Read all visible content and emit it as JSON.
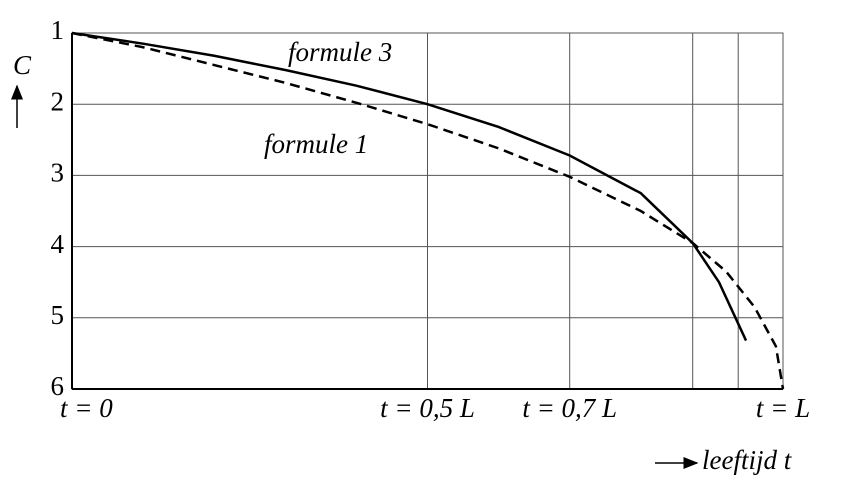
{
  "chart_data": {
    "type": "line",
    "x": [
      0,
      0.1,
      0.2,
      0.3,
      0.4,
      0.5,
      0.6,
      0.7,
      0.8,
      0.873,
      0.92,
      0.96,
      0.99,
      1.0
    ],
    "series": [
      {
        "name": "formule 3",
        "color": "#000000",
        "dash": false,
        "x": [
          0,
          0.1,
          0.2,
          0.3,
          0.4,
          0.5,
          0.6,
          0.7,
          0.8,
          0.873,
          0.91,
          0.948
        ],
        "values": [
          1,
          1.15,
          1.32,
          1.52,
          1.74,
          2.0,
          2.32,
          2.72,
          3.25,
          3.95,
          4.5,
          5.32
        ]
      },
      {
        "name": "formule 1",
        "color": "#000000",
        "dash": true,
        "x": [
          0,
          0.1,
          0.2,
          0.3,
          0.4,
          0.5,
          0.6,
          0.7,
          0.8,
          0.873,
          0.92,
          0.96,
          0.99,
          1.0
        ],
        "values": [
          1,
          1.2,
          1.45,
          1.7,
          1.98,
          2.28,
          2.62,
          3.02,
          3.5,
          3.95,
          4.35,
          4.85,
          5.4,
          6.0
        ]
      }
    ],
    "xlabel": "leeftijd t",
    "ylabel": "C",
    "xlim": [
      0,
      1
    ],
    "xticks": [
      {
        "value": 0,
        "label": "t = 0"
      },
      {
        "value": 0.5,
        "label": "t = 0,5 L"
      },
      {
        "value": 0.7,
        "label": "t = 0,7 L"
      },
      {
        "value": 1,
        "label": "t = L"
      }
    ],
    "xgrid": [
      0.873,
      0.937
    ],
    "ylim": [
      6,
      1
    ],
    "yticks": [
      1,
      2,
      3,
      4,
      5,
      6
    ],
    "grid": true
  }
}
